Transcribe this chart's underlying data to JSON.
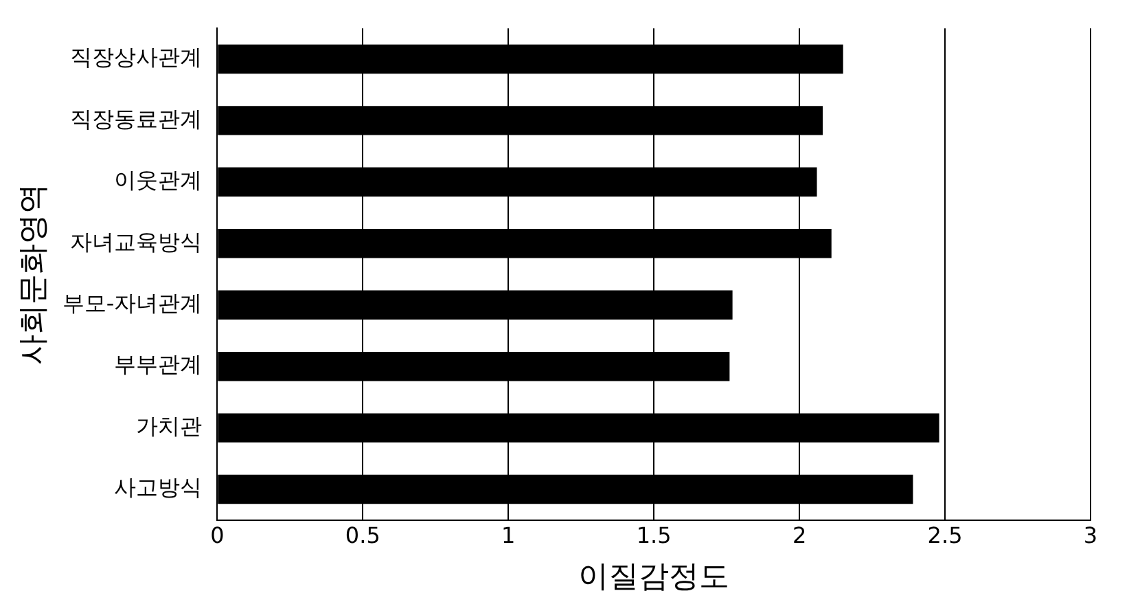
{
  "chart_data": {
    "type": "bar",
    "orientation": "horizontal",
    "xlabel": "이질감정도",
    "ylabel": "사회문화영역",
    "categories": [
      "직장상사관계",
      "직장동료관계",
      "이웃관계",
      "자녀교육방식",
      "부모-자녀관계",
      "부부관계",
      "가치관",
      "사고방식"
    ],
    "values": [
      2.15,
      2.08,
      2.06,
      2.11,
      1.77,
      1.76,
      2.48,
      2.39
    ],
    "color": "#000000",
    "xlim": [
      0,
      3
    ],
    "xticks": [
      0,
      0.5,
      1,
      1.5,
      2,
      2.5,
      3
    ],
    "grid": "x",
    "legend": false
  }
}
